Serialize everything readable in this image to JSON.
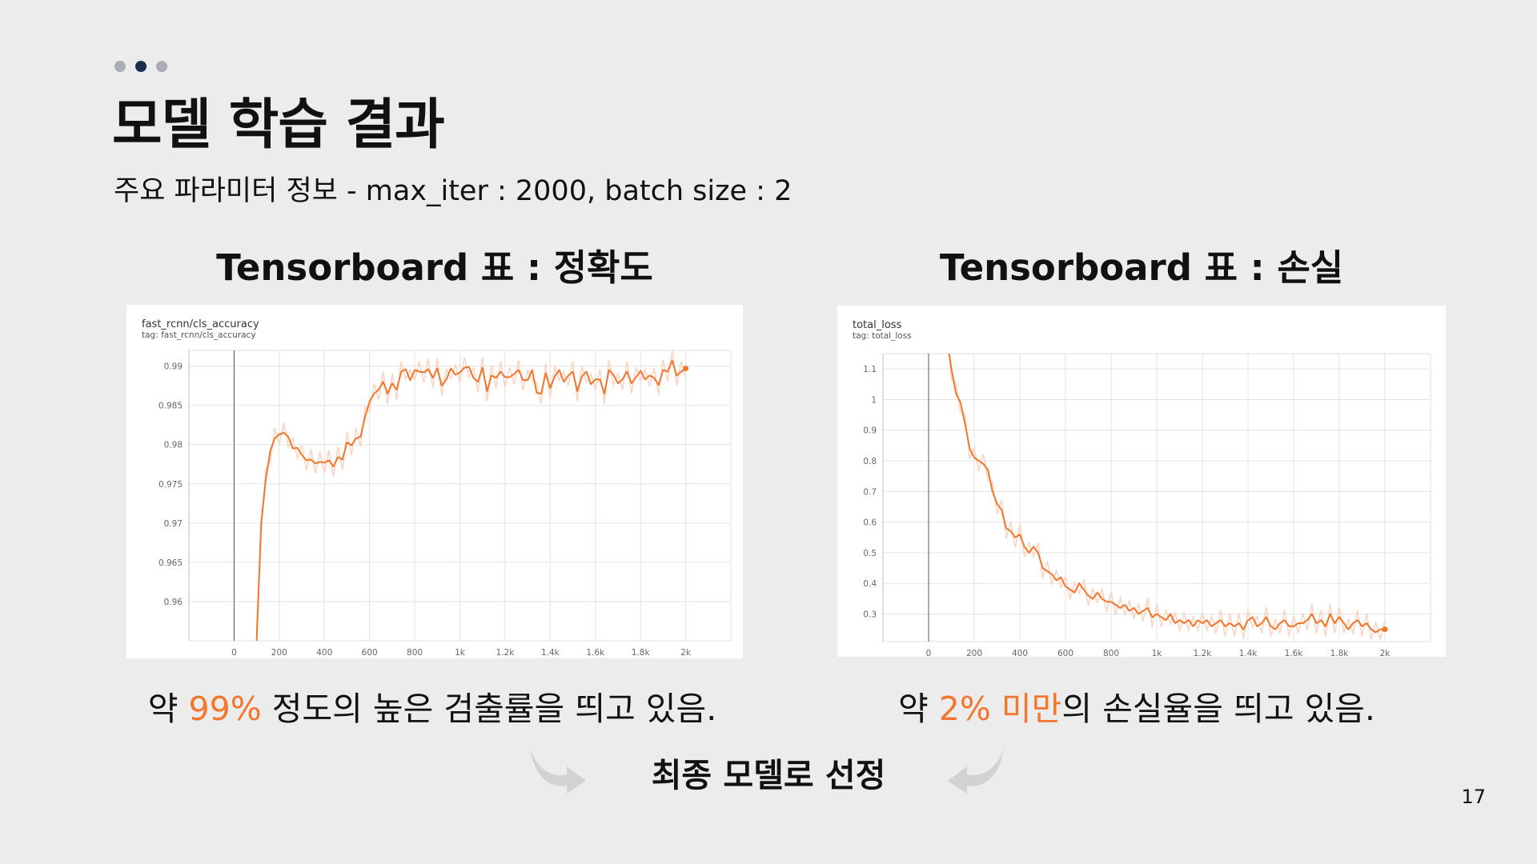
{
  "slide": {
    "title": "모델 학습 결과",
    "subtitle": "주요 파라미터 정보 - max_iter : 2000, batch size : 2",
    "page_number": "17",
    "accent_color": "#f2762c",
    "nav_dots": [
      {
        "active": false
      },
      {
        "active": true
      },
      {
        "active": false
      }
    ]
  },
  "left": {
    "heading": "Tensorboard 표 : 정확도",
    "caption_pre": "약 ",
    "caption_highlight": "99%",
    "caption_post": " 정도의 높은 검출률을 띄고 있음."
  },
  "right": {
    "heading": "Tensorboard 표 : 손실",
    "caption_pre": "약 ",
    "caption_highlight": "2% 미만",
    "caption_post": "의 손실율을 띄고 있음."
  },
  "bottom": {
    "final_label": "최종 모델로 선정",
    "left_arrow_icon": "curved-arrow-right-icon",
    "right_arrow_icon": "curved-arrow-left-icon"
  },
  "chart_data": [
    {
      "type": "line",
      "title": "fast_rcnn/cls_accuracy",
      "subtitle": "tag: fast_rcnn/cls_accuracy",
      "xlim": [
        -200,
        2200
      ],
      "ylim": [
        0.955,
        0.992
      ],
      "x_ticks": [
        0,
        200,
        400,
        600,
        800,
        1000,
        1200,
        1400,
        1600,
        1800,
        2000
      ],
      "x_tick_labels": [
        "0",
        "200",
        "400",
        "600",
        "800",
        "1k",
        "1.2k",
        "1.4k",
        "1.6k",
        "1.8k",
        "2k"
      ],
      "y_ticks": [
        0.96,
        0.965,
        0.97,
        0.975,
        0.98,
        0.985,
        0.99
      ],
      "y_tick_labels": [
        "0.96",
        "0.965",
        "0.97",
        "0.975",
        "0.98",
        "0.985",
        "0.99"
      ],
      "grid": true,
      "smoothing_color": "#f2762c",
      "raw_color": "#fbd3c0",
      "series": [
        {
          "x": [
            100,
            120,
            140,
            160,
            180,
            200,
            220,
            240,
            260,
            280,
            300,
            320,
            340,
            360,
            380,
            400,
            420,
            440,
            460,
            480,
            500,
            520,
            540,
            560,
            580,
            600,
            620,
            640,
            660,
            680,
            700,
            720,
            740,
            760,
            780,
            800,
            820,
            840,
            860,
            880,
            900,
            920,
            940,
            960,
            980,
            1000,
            1020,
            1040,
            1060,
            1080,
            1100,
            1120,
            1140,
            1160,
            1180,
            1200,
            1220,
            1240,
            1260,
            1280,
            1300,
            1320,
            1340,
            1360,
            1380,
            1400,
            1420,
            1440,
            1460,
            1480,
            1500,
            1520,
            1540,
            1560,
            1580,
            1600,
            1620,
            1640,
            1660,
            1680,
            1700,
            1720,
            1740,
            1760,
            1780,
            1800,
            1820,
            1840,
            1860,
            1880,
            1900,
            1920,
            1940,
            1960,
            1980,
            2000
          ],
          "values": [
            0.955,
            0.97,
            0.9755,
            0.9792,
            0.9808,
            0.9813,
            0.9815,
            0.981,
            0.9795,
            0.9796,
            0.9787,
            0.978,
            0.9781,
            0.9776,
            0.9778,
            0.9777,
            0.978,
            0.9772,
            0.9784,
            0.9781,
            0.9803,
            0.9799,
            0.9808,
            0.981,
            0.9835,
            0.9855,
            0.9865,
            0.987,
            0.988,
            0.9865,
            0.9878,
            0.987,
            0.9893,
            0.9896,
            0.9882,
            0.9895,
            0.9893,
            0.9892,
            0.9896,
            0.9885,
            0.9897,
            0.9875,
            0.9883,
            0.9897,
            0.9889,
            0.9892,
            0.9898,
            0.9899,
            0.9885,
            0.988,
            0.9898,
            0.9868,
            0.9888,
            0.9885,
            0.9893,
            0.9886,
            0.9886,
            0.989,
            0.9895,
            0.9882,
            0.9882,
            0.9895,
            0.9866,
            0.9865,
            0.9891,
            0.9872,
            0.9887,
            0.9895,
            0.988,
            0.9888,
            0.9893,
            0.9868,
            0.9887,
            0.9893,
            0.9877,
            0.9883,
            0.9883,
            0.9865,
            0.9895,
            0.9889,
            0.9878,
            0.9883,
            0.9893,
            0.9878,
            0.9886,
            0.9894,
            0.9883,
            0.9888,
            0.9885,
            0.9876,
            0.9895,
            0.9893,
            0.9907,
            0.9888,
            0.9893,
            0.9897
          ]
        }
      ]
    },
    {
      "type": "line",
      "title": "total_loss",
      "subtitle": "tag: total_loss",
      "xlim": [
        -200,
        2200
      ],
      "ylim": [
        0.21,
        1.15
      ],
      "x_ticks": [
        0,
        200,
        400,
        600,
        800,
        1000,
        1200,
        1400,
        1600,
        1800,
        2000
      ],
      "x_tick_labels": [
        "0",
        "200",
        "400",
        "600",
        "800",
        "1k",
        "1.2k",
        "1.4k",
        "1.6k",
        "1.8k",
        "2k"
      ],
      "y_ticks": [
        0.3,
        0.4,
        0.5,
        0.6,
        0.7,
        0.8,
        0.9,
        1,
        1.1
      ],
      "y_tick_labels": [
        "0.3",
        "0.4",
        "0.5",
        "0.6",
        "0.7",
        "0.8",
        "0.9",
        "1",
        "1.1"
      ],
      "grid": true,
      "smoothing_color": "#f2762c",
      "raw_color": "#fbd3c0",
      "series": [
        {
          "x": [
            80,
            100,
            120,
            140,
            160,
            180,
            200,
            220,
            240,
            260,
            280,
            300,
            320,
            340,
            360,
            380,
            400,
            420,
            440,
            460,
            480,
            500,
            520,
            540,
            560,
            580,
            600,
            620,
            640,
            660,
            680,
            700,
            720,
            740,
            760,
            780,
            800,
            820,
            840,
            860,
            880,
            900,
            920,
            940,
            960,
            980,
            1000,
            1020,
            1040,
            1060,
            1080,
            1100,
            1120,
            1140,
            1160,
            1180,
            1200,
            1220,
            1240,
            1260,
            1280,
            1300,
            1320,
            1340,
            1360,
            1380,
            1400,
            1420,
            1440,
            1460,
            1480,
            1500,
            1520,
            1540,
            1560,
            1580,
            1600,
            1620,
            1640,
            1660,
            1680,
            1700,
            1720,
            1740,
            1760,
            1780,
            1800,
            1820,
            1840,
            1860,
            1880,
            1900,
            1920,
            1940,
            1960,
            1980,
            2000
          ],
          "values": [
            1.2,
            1.1,
            1.02,
            0.99,
            0.92,
            0.84,
            0.81,
            0.8,
            0.79,
            0.77,
            0.7,
            0.66,
            0.64,
            0.58,
            0.57,
            0.55,
            0.56,
            0.52,
            0.5,
            0.52,
            0.5,
            0.45,
            0.44,
            0.43,
            0.41,
            0.42,
            0.39,
            0.38,
            0.37,
            0.4,
            0.38,
            0.36,
            0.35,
            0.37,
            0.35,
            0.34,
            0.34,
            0.33,
            0.32,
            0.33,
            0.31,
            0.32,
            0.3,
            0.31,
            0.32,
            0.29,
            0.3,
            0.29,
            0.28,
            0.3,
            0.27,
            0.28,
            0.27,
            0.28,
            0.26,
            0.28,
            0.27,
            0.28,
            0.26,
            0.27,
            0.28,
            0.26,
            0.27,
            0.26,
            0.27,
            0.25,
            0.28,
            0.29,
            0.26,
            0.27,
            0.29,
            0.26,
            0.25,
            0.27,
            0.28,
            0.26,
            0.26,
            0.27,
            0.27,
            0.28,
            0.3,
            0.27,
            0.28,
            0.26,
            0.3,
            0.27,
            0.29,
            0.27,
            0.25,
            0.27,
            0.28,
            0.26,
            0.27,
            0.25,
            0.24,
            0.25,
            0.25
          ]
        }
      ]
    }
  ]
}
